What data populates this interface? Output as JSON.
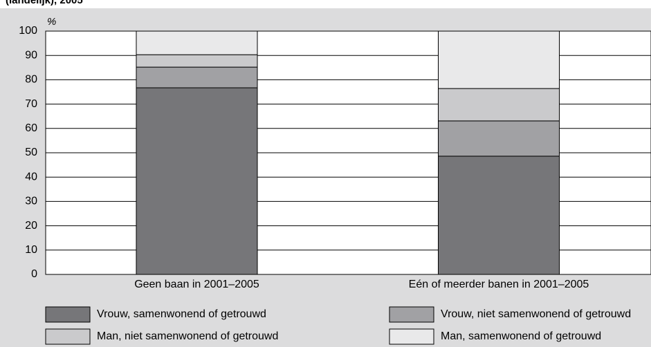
{
  "chart_data": {
    "type": "stacked_bar",
    "title": "(landelijk), 2005",
    "y_label": "%",
    "categories": [
      "Geen baan in 2001–2005",
      "Eén of meerder banen in 2001–2005"
    ],
    "series": [
      {
        "name": "Vrouw, samenwonend of getrouwd",
        "color": "#767679",
        "values": [
          76.7,
          48.6
        ]
      },
      {
        "name": "Vrouw, niet samenwonend of getrouwd",
        "color": "#a1a1a4",
        "values": [
          8.5,
          14.5
        ]
      },
      {
        "name": "Man, niet samenwonend of getrouwd",
        "color": "#cacacc",
        "values": [
          5.1,
          13.3
        ]
      },
      {
        "name": "Man, samenwonend of getrouwd",
        "color": "#e9e9ea",
        "values": [
          9.7,
          23.6
        ]
      }
    ],
    "ylim": [
      0,
      100
    ],
    "yticks": [
      0,
      10,
      20,
      30,
      40,
      50,
      60,
      70,
      80,
      90,
      100
    ],
    "grid": true
  }
}
